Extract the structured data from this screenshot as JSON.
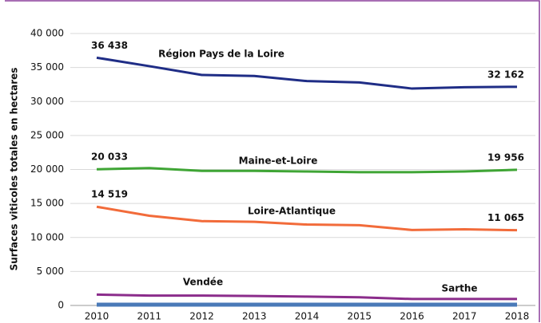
{
  "chart_data": {
    "type": "line",
    "y_label": "Surfaces viticoles totales en hectares",
    "categories": [
      "2010",
      "2011",
      "2012",
      "2013",
      "2014",
      "2015",
      "2016",
      "2017",
      "2018"
    ],
    "ylim": [
      0,
      40000
    ],
    "yticks": [
      0,
      {
        "value": 5000,
        "label": "5 000"
      },
      {
        "value": 10000,
        "label": "10 000"
      },
      {
        "value": 15000,
        "label": "15 000"
      },
      {
        "value": 20000,
        "label": "20 000"
      },
      {
        "value": 25000,
        "label": "25 000"
      },
      {
        "value": 30000,
        "label": "30 000"
      },
      {
        "value": 35000,
        "label": "35 000"
      },
      {
        "value": 40000,
        "label": "40 000"
      }
    ],
    "grid": true,
    "series": [
      {
        "name": "Région Pays de la Loire",
        "color": "#1f2d86",
        "values": [
          36438,
          35200,
          33900,
          33750,
          33000,
          32800,
          31900,
          32100,
          32162
        ],
        "value_labels": [
          "36 438",
          null,
          null,
          null,
          null,
          null,
          null,
          null,
          "32 162"
        ]
      },
      {
        "name": "Maine-et-Loire",
        "color": "#3fa535",
        "values": [
          20033,
          20200,
          19800,
          19800,
          19700,
          19600,
          19600,
          19700,
          19956
        ],
        "value_labels": [
          "20 033",
          null,
          null,
          null,
          null,
          null,
          null,
          null,
          "19 956"
        ]
      },
      {
        "name": "Loire-Atlantique",
        "color": "#f26b3a",
        "values": [
          14519,
          13200,
          12400,
          12300,
          11900,
          11800,
          11100,
          11200,
          11065
        ],
        "value_labels": [
          "14 519",
          null,
          null,
          null,
          null,
          null,
          null,
          null,
          "11 065"
        ]
      },
      {
        "name": "Vendée",
        "color": "#8b2c8b",
        "values": [
          1600,
          1450,
          1450,
          1400,
          1300,
          1200,
          950,
          950,
          950
        ]
      },
      {
        "name": "Sarthe",
        "color": "#4a7ab8",
        "values": [
          120,
          120,
          120,
          120,
          120,
          120,
          120,
          120,
          120
        ]
      }
    ]
  }
}
